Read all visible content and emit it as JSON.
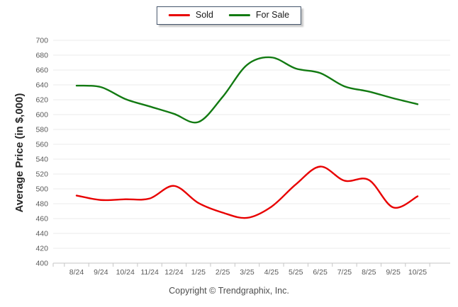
{
  "chart_data": {
    "type": "line",
    "title": "",
    "categories": [
      "8/24",
      "9/24",
      "10/24",
      "11/24",
      "12/24",
      "1/25",
      "2/25",
      "3/25",
      "4/25",
      "5/25",
      "6/25",
      "7/25",
      "8/25",
      "9/25",
      "10/25"
    ],
    "series": [
      {
        "name": "Sold",
        "color": "#e80000",
        "values": [
          491,
          485,
          486,
          487,
          504,
          481,
          468,
          461,
          476,
          506,
          530,
          511,
          512,
          475,
          490
        ]
      },
      {
        "name": "For Sale",
        "color": "#127a12",
        "values": [
          639,
          637,
          621,
          611,
          601,
          590,
          624,
          667,
          677,
          662,
          656,
          638,
          631,
          622,
          614
        ]
      }
    ],
    "xlabel": "",
    "ylabel": "Average Price (in $,000)",
    "ylim": [
      400,
      700
    ],
    "ytick_step": 20,
    "grid": true,
    "legend_position": "top-center",
    "colors": {
      "gridline": "#ebebeb",
      "axis": "#c6c6c6",
      "tick_label": "#595959",
      "axis_title": "#262626"
    }
  },
  "footer": {
    "copyright": "Copyright © Trendgraphix, Inc."
  }
}
